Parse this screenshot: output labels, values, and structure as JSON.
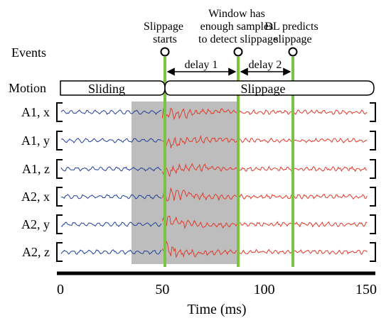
{
  "events": {
    "row_label": "Events",
    "slippage_starts": [
      "Slippage",
      "starts"
    ],
    "window_detect": [
      "Window has",
      "enough samples",
      "to detect slippage"
    ],
    "dl_predicts": [
      "DL predicts",
      "slippage"
    ],
    "delay1": "delay 1",
    "delay2": "delay 2"
  },
  "motion": {
    "row_label": "Motion",
    "sliding": "Sliding",
    "slippage": "Slippage"
  },
  "channels": [
    "A1, x",
    "A1, y",
    "A1, z",
    "A2, x",
    "A2, y",
    "A2, z"
  ],
  "axis": {
    "label": "Time (ms)",
    "ticks": [
      "0",
      "50",
      "100",
      "150"
    ],
    "tick_values": [
      0,
      50,
      100,
      150
    ],
    "range_ms": [
      0,
      150
    ]
  },
  "event_times_ms": {
    "slippage_starts": 50,
    "window_detect": 86,
    "dl_predicts": 113
  },
  "shaded_window_ms": [
    35,
    86
  ],
  "colors": {
    "sliding_signal": "#1f3f99",
    "slippage_signal": "#e23a2b",
    "event_line": "#7cc243",
    "shade": "#bdbdbd",
    "axis": "#000000"
  }
}
